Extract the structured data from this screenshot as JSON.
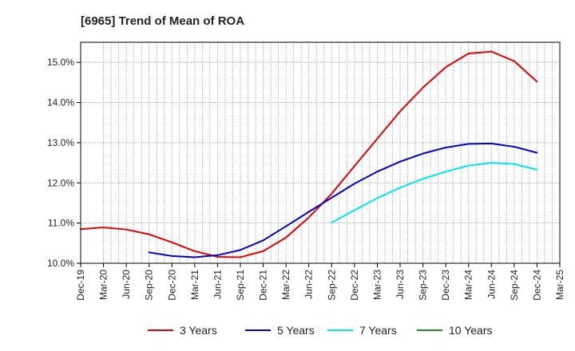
{
  "chart_data": {
    "type": "line",
    "title": "[6965]  Trend of Mean of ROA",
    "xlabel": "",
    "ylabel": "",
    "grid": true,
    "legend_position": "bottom",
    "ylim": [
      10.0,
      15.5
    ],
    "yticks": [
      10.0,
      11.0,
      12.0,
      13.0,
      14.0,
      15.0
    ],
    "ytick_labels": [
      "10.0%",
      "11.0%",
      "12.0%",
      "13.0%",
      "14.0%",
      "15.0%"
    ],
    "x": [
      "Dec-19",
      "Mar-20",
      "Jun-20",
      "Sep-20",
      "Dec-20",
      "Mar-21",
      "Jun-21",
      "Sep-21",
      "Dec-21",
      "Mar-22",
      "Jun-22",
      "Sep-22",
      "Dec-22",
      "Mar-23",
      "Jun-23",
      "Sep-23",
      "Dec-23",
      "Mar-24",
      "Jun-24",
      "Sep-24",
      "Dec-24",
      "Mar-25"
    ],
    "series": [
      {
        "name": "3 Years",
        "color": "#e00000",
        "values": [
          10.85,
          10.89,
          10.84,
          10.72,
          10.52,
          10.3,
          10.16,
          10.15,
          10.3,
          10.64,
          11.14,
          11.73,
          12.42,
          13.1,
          13.78,
          14.37,
          14.88,
          15.22,
          15.27,
          15.03,
          14.52,
          null
        ]
      },
      {
        "name": "5 Years",
        "color": "#0000c8",
        "values": [
          null,
          null,
          null,
          10.27,
          10.18,
          10.15,
          10.2,
          10.33,
          10.57,
          10.92,
          11.28,
          11.63,
          11.98,
          12.28,
          12.53,
          12.73,
          12.88,
          12.97,
          12.98,
          12.9,
          12.75,
          null
        ]
      },
      {
        "name": "7 Years",
        "color": "#00e5ee",
        "values": [
          null,
          null,
          null,
          null,
          null,
          null,
          null,
          null,
          null,
          null,
          null,
          11.01,
          11.32,
          11.62,
          11.88,
          12.1,
          12.28,
          12.43,
          12.5,
          12.47,
          12.33,
          null
        ]
      },
      {
        "name": "10 Years",
        "color": "#228b22",
        "values": [
          null,
          null,
          null,
          null,
          null,
          null,
          null,
          null,
          null,
          null,
          null,
          null,
          null,
          null,
          null,
          null,
          null,
          null,
          null,
          null,
          null,
          null
        ]
      }
    ]
  }
}
